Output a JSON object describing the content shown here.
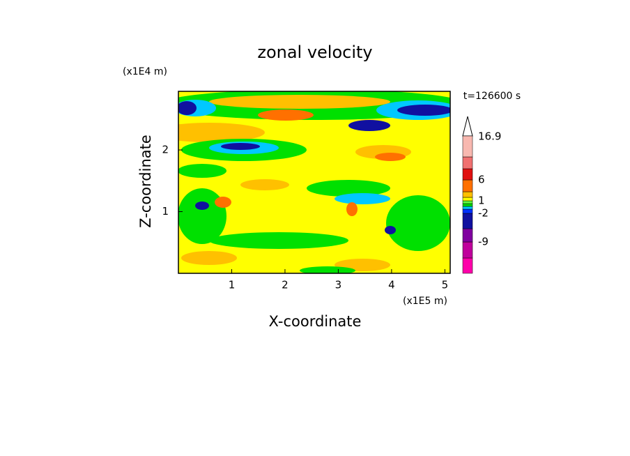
{
  "chart_data": {
    "type": "contour",
    "title": "zonal velocity",
    "x_label": "X-coordinate",
    "y_label": "Z-coordinate",
    "x_unit": "(x1E5 m)",
    "y_unit": "(x1E4 m)",
    "time_label": "t=126600 s",
    "xlim": [
      0,
      5.1
    ],
    "xticks": [
      1,
      2,
      3,
      4,
      5
    ],
    "ylim": [
      0,
      2.95
    ],
    "yticks": [
      1,
      2
    ],
    "colorbar": {
      "colors": [
        "#ff00aa",
        "#c0009c",
        "#8000a0",
        "#1010a0",
        "#0030ff",
        "#00c8ff",
        "#00e000",
        "#60ff40",
        "#ffff00",
        "#ffc000",
        "#ff7000",
        "#e01010",
        "#f07070",
        "#f8b8b0"
      ],
      "ticks": [
        16.9,
        6,
        1,
        -2,
        -9
      ]
    }
  }
}
